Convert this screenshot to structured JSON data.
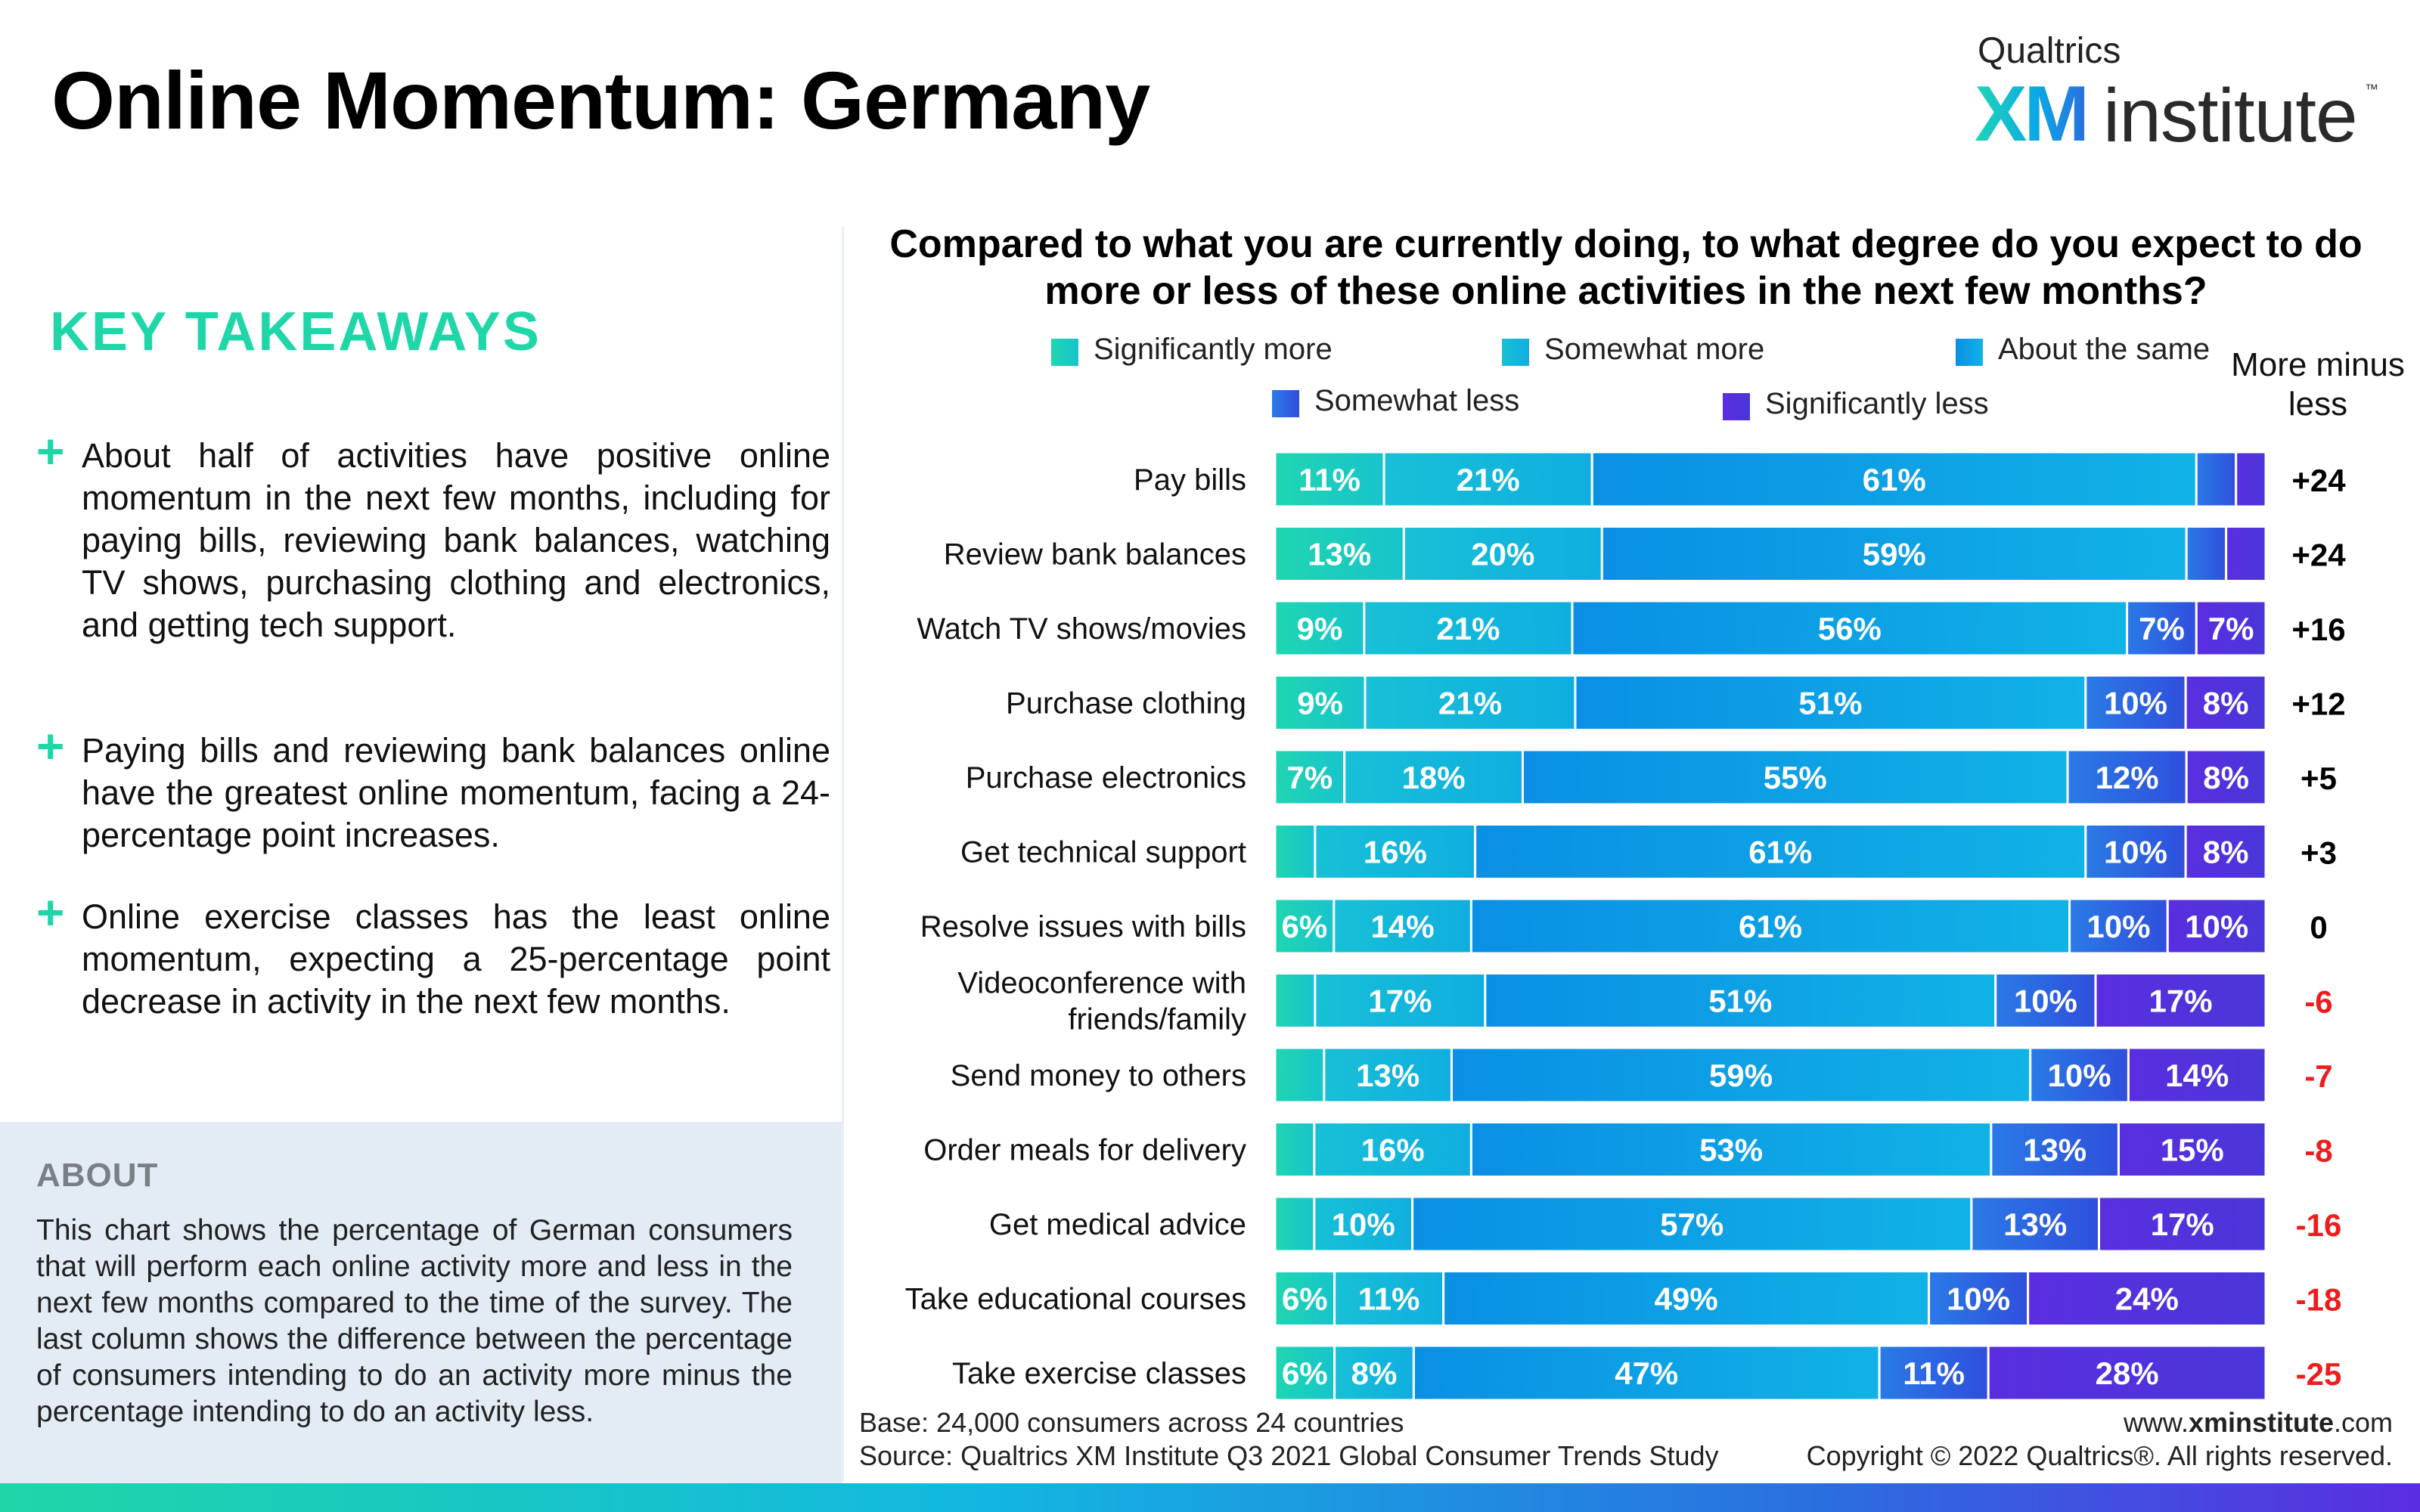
{
  "title": "Online Momentum: Germany",
  "logo": {
    "brand": "Qualtrics",
    "mark": "XM",
    "product": "institute",
    "tm": "™"
  },
  "takeaways": {
    "heading": "KEY TAKEAWAYS",
    "items": [
      "About half of activities have positive online momentum in the next few months, including for paying bills, reviewing bank balances, watching TV shows, purchasing clothing and electronics, and getting tech support.",
      "Paying bills and reviewing bank balances online have the greatest online momentum, facing a 24- percentage point increases.",
      "Online exercise classes has the least online momentum, expecting a 25-percentage point decrease in activity in the next few months."
    ]
  },
  "about": {
    "heading": "ABOUT",
    "body": "This chart shows the percentage of German consumers that will perform each online activity more and less in the next few months compared to the time of the survey. The last column shows the difference between the percentage of consumers intending to do an activity more minus the percentage intending to do an activity less."
  },
  "footer": {
    "base": "Base: 24,000 consumers across 24 countries",
    "source": "Source: Qualtrics XM Institute Q3 2021 Global Consumer Trends Study",
    "url_prefix": "www.",
    "url_bold": "xminstitute",
    "url_suffix": ".com",
    "copyright": "Copyright © 2022 Qualtrics®. All rights reserved."
  },
  "colors": {
    "accent": "#1fd6a8",
    "positive_diff": "#000000",
    "negative_diff": "#ee1c1c"
  },
  "chart_data": {
    "type": "bar",
    "orientation": "horizontal",
    "stacked": true,
    "title": "Compared to what you are currently doing, to what degree do you expect to do more or less of these online activities in the next few months?",
    "diff_header": "More minus less",
    "xlim": [
      0,
      100
    ],
    "grid": false,
    "legend_position": "top",
    "categories": [
      [
        "Pay bills"
      ],
      [
        "Review bank balances"
      ],
      [
        "Watch TV shows/movies"
      ],
      [
        "Purchase clothing"
      ],
      [
        "Purchase electronics"
      ],
      [
        "Get technical support"
      ],
      [
        "Resolve issues with bills"
      ],
      [
        "Videoconference with",
        "friends/family"
      ],
      [
        "Send money to others"
      ],
      [
        "Order meals for delivery"
      ],
      [
        "Get medical advice"
      ],
      [
        "Take educational courses"
      ],
      [
        "Take exercise classes"
      ]
    ],
    "series": [
      {
        "name": "Significantly more",
        "color_from": "#1fd6b0",
        "color_to": "#17c4cc",
        "values": [
          11,
          13,
          9,
          9,
          7,
          4,
          6,
          4,
          5,
          4,
          4,
          6,
          6
        ],
        "labels": [
          "11%",
          "13%",
          "9%",
          "9%",
          "7%",
          "",
          "6%",
          "",
          "",
          "",
          "",
          "6%",
          "6%"
        ]
      },
      {
        "name": "Somewhat more",
        "color_from": "#17c0d6",
        "color_to": "#10aee0",
        "values": [
          21,
          20,
          21,
          21,
          18,
          16,
          14,
          17,
          13,
          16,
          10,
          11,
          8
        ],
        "labels": [
          "21%",
          "20%",
          "21%",
          "21%",
          "18%",
          "16%",
          "14%",
          "17%",
          "13%",
          "16%",
          "10%",
          "11%",
          "8%"
        ]
      },
      {
        "name": "About the same",
        "color_from": "#0a8fe4",
        "color_to": "#11b2e6",
        "values": [
          61,
          59,
          56,
          51,
          55,
          61,
          61,
          51,
          59,
          53,
          57,
          49,
          47
        ],
        "labels": [
          "61%",
          "59%",
          "56%",
          "51%",
          "55%",
          "61%",
          "61%",
          "51%",
          "59%",
          "53%",
          "57%",
          "49%",
          "47%"
        ]
      },
      {
        "name": "Somewhat less",
        "color_from": "#2a7ae6",
        "color_to": "#2f4fdc",
        "values": [
          4,
          4,
          7,
          10,
          12,
          10,
          10,
          10,
          10,
          13,
          13,
          10,
          11
        ],
        "labels": [
          "",
          "",
          "7%",
          "10%",
          "12%",
          "10%",
          "10%",
          "10%",
          "10%",
          "13%",
          "13%",
          "10%",
          "11%"
        ]
      },
      {
        "name": "Significantly less",
        "color_from": "#5a2ee0",
        "color_to": "#4a36d8",
        "values": [
          3,
          4,
          7,
          8,
          8,
          8,
          10,
          17,
          14,
          15,
          17,
          24,
          28
        ],
        "labels": [
          "",
          "",
          "7%",
          "8%",
          "8%",
          "8%",
          "10%",
          "17%",
          "14%",
          "15%",
          "17%",
          "24%",
          "28%"
        ]
      }
    ],
    "diff": [
      "+24",
      "+24",
      "+16",
      "+12",
      "+5",
      "+3",
      "0",
      "-6",
      "-7",
      "-8",
      "-16",
      "-18",
      "-25"
    ]
  }
}
